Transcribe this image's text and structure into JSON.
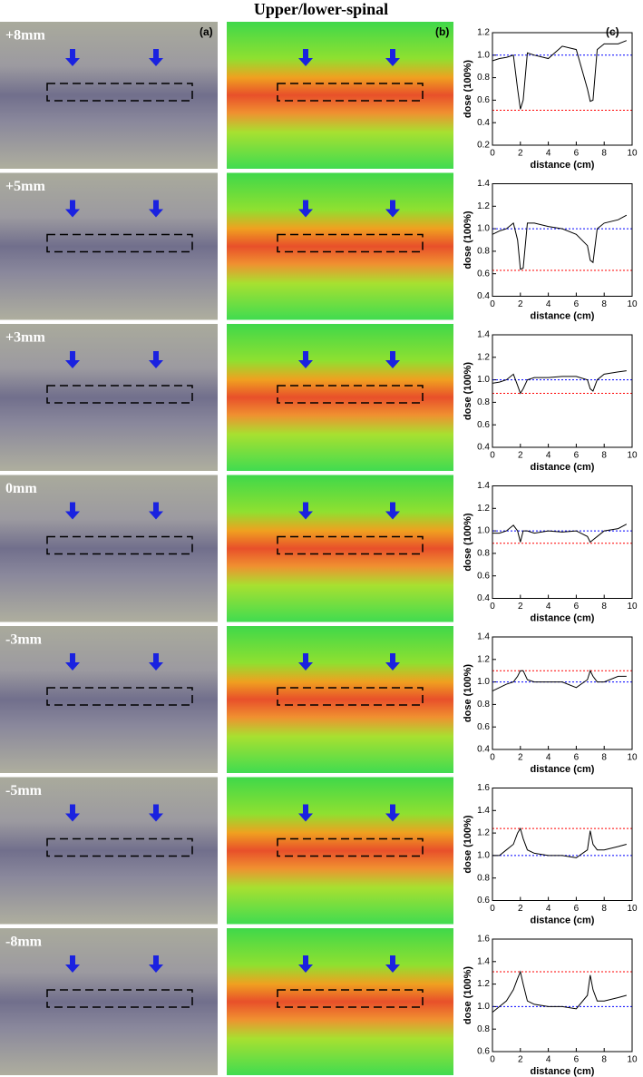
{
  "title": "Upper/lower-spinal",
  "panel_labels": [
    "(a)",
    "(b)",
    "(c)"
  ],
  "row_labels": [
    "+8mm",
    "+5mm",
    "+3mm",
    "0mm",
    "-3mm",
    "-5mm",
    "-8mm"
  ],
  "chart_data": [
    {
      "type": "line",
      "xlabel": "distance (cm)",
      "ylabel": "dose (100%)",
      "xlim": [
        0,
        10
      ],
      "xticks": [
        0,
        2,
        4,
        6,
        8,
        10
      ],
      "ylim": [
        0.2,
        1.2
      ],
      "yticks": [
        0.2,
        0.4,
        0.6,
        0.8,
        {
          "value": 1,
          "label": "1.0"
        },
        1.2
      ],
      "x": [
        0,
        0.5,
        1,
        1.5,
        1.8,
        2,
        2.2,
        2.5,
        3,
        4,
        5,
        6,
        6.8,
        7,
        7.2,
        7.5,
        8,
        9,
        9.6
      ],
      "series": [
        {
          "color": "#000000",
          "values": [
            0.95,
            0.97,
            0.98,
            1.0,
            0.7,
            0.52,
            0.6,
            1.02,
            1.0,
            0.97,
            1.08,
            1.05,
            0.7,
            0.59,
            0.6,
            1.05,
            1.1,
            1.1,
            1.13
          ]
        }
      ],
      "reference_lines": [
        {
          "value": 1.0,
          "color": "#0000ff"
        },
        {
          "value": 0.51,
          "color": "#ff0000"
        }
      ]
    },
    {
      "type": "line",
      "xlabel": "distance (cm)",
      "ylabel": "dose (100%)",
      "xlim": [
        0,
        10
      ],
      "xticks": [
        0,
        2,
        4,
        6,
        8,
        10
      ],
      "ylim": [
        0.4,
        1.4
      ],
      "yticks": [
        0.4,
        0.6,
        0.8,
        {
          "value": 1,
          "label": "1.0"
        },
        1.2,
        1.4
      ],
      "x": [
        0,
        0.5,
        1,
        1.5,
        1.8,
        2,
        2.2,
        2.5,
        3,
        4,
        5,
        6,
        6.8,
        7,
        7.2,
        7.5,
        8,
        9,
        9.6
      ],
      "series": [
        {
          "color": "#000000",
          "values": [
            0.95,
            0.98,
            1.0,
            1.05,
            0.9,
            0.64,
            0.65,
            1.05,
            1.05,
            1.02,
            1.0,
            0.95,
            0.85,
            0.72,
            0.7,
            1.0,
            1.05,
            1.08,
            1.12
          ]
        }
      ],
      "reference_lines": [
        {
          "value": 1.0,
          "color": "#0000ff"
        },
        {
          "value": 0.63,
          "color": "#ff0000"
        }
      ]
    },
    {
      "type": "line",
      "xlabel": "distance (cm)",
      "ylabel": "dose (100%)",
      "xlim": [
        0,
        10
      ],
      "xticks": [
        0,
        2,
        4,
        6,
        8,
        10
      ],
      "ylim": [
        0.4,
        1.4
      ],
      "yticks": [
        0.4,
        0.6,
        0.8,
        {
          "value": 1,
          "label": "1.0"
        },
        1.2,
        1.4
      ],
      "x": [
        0,
        0.5,
        1,
        1.5,
        1.8,
        2,
        2.2,
        2.5,
        3,
        4,
        5,
        6,
        6.8,
        7,
        7.2,
        7.5,
        8,
        9,
        9.6
      ],
      "series": [
        {
          "color": "#000000",
          "values": [
            0.97,
            0.98,
            1.0,
            1.05,
            0.95,
            0.88,
            0.92,
            1.0,
            1.02,
            1.02,
            1.03,
            1.03,
            1.0,
            0.92,
            0.9,
            1.0,
            1.05,
            1.07,
            1.08
          ]
        }
      ],
      "reference_lines": [
        {
          "value": 1.0,
          "color": "#0000ff"
        },
        {
          "value": 0.88,
          "color": "#ff0000"
        }
      ]
    },
    {
      "type": "line",
      "xlabel": "distance (cm)",
      "ylabel": "dose (100%)",
      "xlim": [
        0,
        10
      ],
      "xticks": [
        0,
        2,
        4,
        6,
        8,
        10
      ],
      "ylim": [
        0.4,
        1.4
      ],
      "yticks": [
        0.4,
        0.6,
        0.8,
        {
          "value": 1,
          "label": "1.0"
        },
        1.2,
        1.4
      ],
      "x": [
        0,
        0.5,
        1,
        1.5,
        1.8,
        2,
        2.2,
        2.5,
        3,
        4,
        5,
        6,
        6.8,
        7,
        7.2,
        7.5,
        8,
        9,
        9.6
      ],
      "series": [
        {
          "color": "#000000",
          "values": [
            0.98,
            0.98,
            1.0,
            1.05,
            1.0,
            0.9,
            1.0,
            1.0,
            0.98,
            1.0,
            0.99,
            1.0,
            0.95,
            0.9,
            0.92,
            0.95,
            1.0,
            1.02,
            1.06
          ]
        }
      ],
      "reference_lines": [
        {
          "value": 1.0,
          "color": "#0000ff"
        },
        {
          "value": 0.89,
          "color": "#ff0000"
        }
      ]
    },
    {
      "type": "line",
      "xlabel": "distance (cm)",
      "ylabel": "dose (100%)",
      "xlim": [
        0,
        10
      ],
      "xticks": [
        0,
        2,
        4,
        6,
        8,
        10
      ],
      "ylim": [
        0.4,
        1.4
      ],
      "yticks": [
        0.4,
        0.6,
        0.8,
        {
          "value": 1,
          "label": "1.0"
        },
        1.2,
        1.4
      ],
      "x": [
        0,
        0.5,
        1,
        1.5,
        1.8,
        2,
        2.2,
        2.5,
        3,
        4,
        5,
        6,
        6.8,
        7,
        7.2,
        7.5,
        8,
        9,
        9.6
      ],
      "series": [
        {
          "color": "#000000",
          "values": [
            0.92,
            0.95,
            0.98,
            1.0,
            1.05,
            1.1,
            1.1,
            1.02,
            1.0,
            1.0,
            1.0,
            0.95,
            1.02,
            1.1,
            1.05,
            1.0,
            1.0,
            1.05,
            1.05
          ]
        }
      ],
      "reference_lines": [
        {
          "value": 1.0,
          "color": "#0000ff"
        },
        {
          "value": 1.1,
          "color": "#ff0000"
        }
      ]
    },
    {
      "type": "line",
      "xlabel": "distance (cm)",
      "ylabel": "dose (100%)",
      "xlim": [
        0,
        10
      ],
      "xticks": [
        0,
        2,
        4,
        6,
        8,
        10
      ],
      "ylim": [
        0.6,
        1.6
      ],
      "yticks": [
        0.6,
        0.8,
        {
          "value": 1,
          "label": "1.0"
        },
        1.2,
        1.4,
        1.6
      ],
      "x": [
        0,
        0.5,
        1,
        1.5,
        1.8,
        2,
        2.2,
        2.5,
        3,
        4,
        5,
        6,
        6.8,
        7,
        7.2,
        7.5,
        8,
        9,
        9.6
      ],
      "series": [
        {
          "color": "#000000",
          "values": [
            1.0,
            1.0,
            1.05,
            1.1,
            1.2,
            1.24,
            1.15,
            1.05,
            1.02,
            1.0,
            1.0,
            0.98,
            1.05,
            1.22,
            1.1,
            1.05,
            1.05,
            1.08,
            1.1
          ]
        }
      ],
      "reference_lines": [
        {
          "value": 1.0,
          "color": "#0000ff"
        },
        {
          "value": 1.24,
          "color": "#ff0000"
        }
      ]
    },
    {
      "type": "line",
      "xlabel": "distance (cm)",
      "ylabel": "dose (100%)",
      "xlim": [
        0,
        10
      ],
      "xticks": [
        0,
        2,
        4,
        6,
        8,
        10
      ],
      "ylim": [
        0.6,
        1.6
      ],
      "yticks": [
        0.6,
        0.8,
        {
          "value": 1,
          "label": "1.0"
        },
        1.2,
        1.4,
        1.6
      ],
      "x": [
        0,
        0.5,
        1,
        1.5,
        1.8,
        2,
        2.2,
        2.5,
        3,
        4,
        5,
        6,
        6.8,
        7,
        7.2,
        7.5,
        8,
        9,
        9.6
      ],
      "series": [
        {
          "color": "#000000",
          "values": [
            0.95,
            1.0,
            1.05,
            1.15,
            1.25,
            1.31,
            1.2,
            1.05,
            1.02,
            1.0,
            1.0,
            0.98,
            1.1,
            1.28,
            1.15,
            1.05,
            1.05,
            1.08,
            1.1
          ]
        }
      ],
      "reference_lines": [
        {
          "value": 1.0,
          "color": "#0000ff"
        },
        {
          "value": 1.31,
          "color": "#ff0000"
        }
      ]
    }
  ]
}
